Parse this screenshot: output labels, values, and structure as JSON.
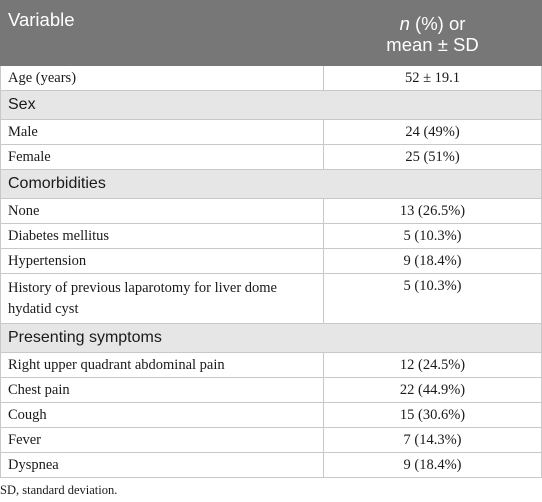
{
  "table": {
    "header": {
      "col1": "Variable",
      "col2_italic": "n",
      "col2_line1_rest": " (%) or",
      "col2_line2": "mean ± SD"
    },
    "rows": [
      {
        "type": "row",
        "label": "Age (years)",
        "value": "52 ± 19.1"
      },
      {
        "type": "section",
        "label": "Sex"
      },
      {
        "type": "row",
        "label": "Male",
        "value": "24 (49%)"
      },
      {
        "type": "row",
        "label": "Female",
        "value": "25 (51%)"
      },
      {
        "type": "section",
        "label": "Comorbidities"
      },
      {
        "type": "row",
        "label": "None",
        "value": "13 (26.5%)"
      },
      {
        "type": "row",
        "label": "Diabetes mellitus",
        "value": "5 (10.3%)"
      },
      {
        "type": "row",
        "label": "Hypertension",
        "value": "9 (18.4%)"
      },
      {
        "type": "row2",
        "label": "History of previous laparotomy for liver dome hydatid cyst",
        "value": "5 (10.3%)"
      },
      {
        "type": "section",
        "label": "Presenting symptoms"
      },
      {
        "type": "row",
        "label": "Right upper quadrant abdominal pain",
        "value": "12 (24.5%)"
      },
      {
        "type": "row",
        "label": "Chest pain",
        "value": "22 (44.9%)"
      },
      {
        "type": "row",
        "label": "Cough",
        "value": "15 (30.6%)"
      },
      {
        "type": "row",
        "label": "Fever",
        "value": "7 (14.3%)"
      },
      {
        "type": "row",
        "label": "Dyspnea",
        "value": "9 (18.4%)"
      }
    ]
  },
  "footnote": "SD, standard deviation.",
  "colors": {
    "header_bg": "#777777",
    "section_bg": "#e6e6e6",
    "border": "#c8c8c8"
  }
}
